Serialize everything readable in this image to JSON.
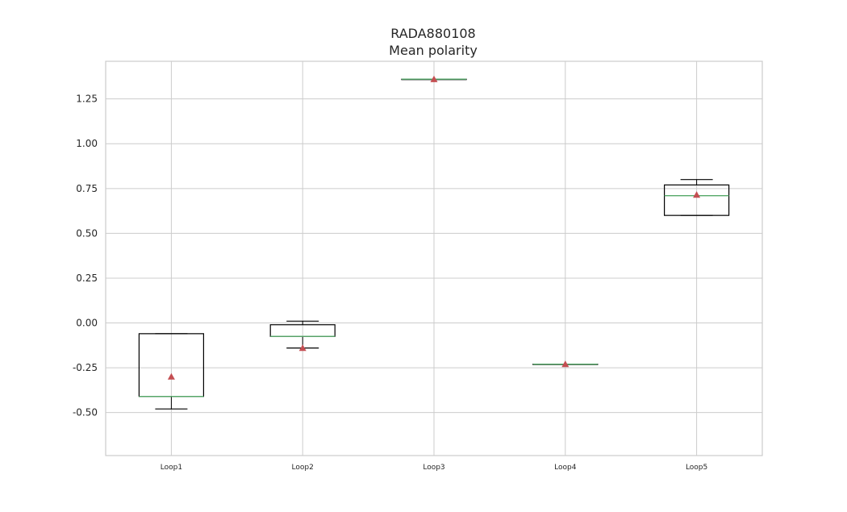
{
  "chart_data": {
    "type": "box",
    "title": "RADA880108",
    "subtitle": "Mean polarity",
    "xlabel": "",
    "ylabel": "",
    "categories": [
      "Loop1",
      "Loop2",
      "Loop3",
      "Loop4",
      "Loop5"
    ],
    "ylim": [
      -0.74,
      1.46
    ],
    "yticks": [
      -0.5,
      -0.25,
      0.0,
      0.25,
      0.5,
      0.75,
      1.0,
      1.25
    ],
    "ytick_labels": [
      "-0.50",
      "-0.25",
      "0.00",
      "0.25",
      "0.50",
      "0.75",
      "1.00",
      "1.25"
    ],
    "grid": true,
    "boxes": [
      {
        "label": "Loop1",
        "whisker_low": -0.48,
        "q1": -0.41,
        "median": -0.41,
        "q3": -0.06,
        "whisker_high": -0.06,
        "mean": -0.3
      },
      {
        "label": "Loop2",
        "whisker_low": -0.14,
        "q1": -0.075,
        "median": -0.075,
        "q3": -0.01,
        "whisker_high": 0.01,
        "mean": -0.14
      },
      {
        "label": "Loop3",
        "whisker_low": 1.36,
        "q1": 1.36,
        "median": 1.36,
        "q3": 1.36,
        "whisker_high": 1.36,
        "mean": 1.36
      },
      {
        "label": "Loop4",
        "whisker_low": -0.23,
        "q1": -0.23,
        "median": -0.23,
        "q3": -0.23,
        "whisker_high": -0.23,
        "mean": -0.23
      },
      {
        "label": "Loop5",
        "whisker_low": 0.6,
        "q1": 0.6,
        "median": 0.71,
        "q3": 0.77,
        "whisker_high": 0.8,
        "mean": 0.715
      }
    ],
    "colors": {
      "box": "#000000",
      "median": "#55a868",
      "mean_marker": "#c44e52",
      "grid": "#cccccc",
      "axes_edge": "#cccccc"
    }
  }
}
